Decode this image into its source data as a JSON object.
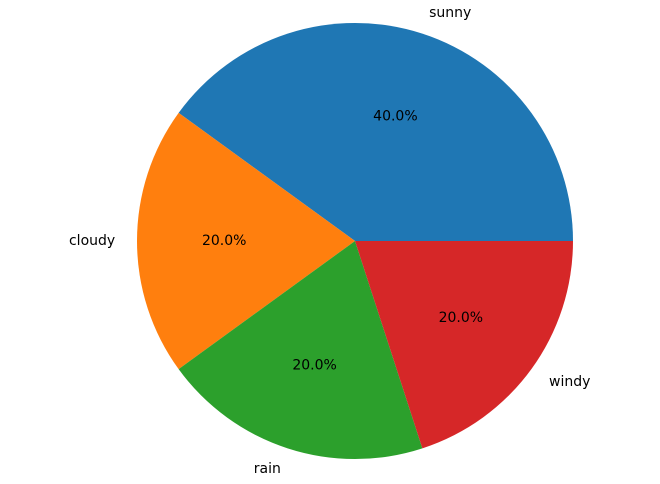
{
  "chart_data": {
    "type": "pie",
    "categories": [
      "sunny",
      "cloudy",
      "rain",
      "windy"
    ],
    "values": [
      40,
      20,
      20,
      20
    ],
    "percent_labels": [
      "40.0%",
      "20.0%",
      "20.0%",
      "20.0%"
    ],
    "colors": [
      "#1f77b4",
      "#ff7f0e",
      "#2ca02c",
      "#d62728"
    ],
    "start_angle_deg": 0,
    "direction": "counterclockwise",
    "legend": "none"
  }
}
